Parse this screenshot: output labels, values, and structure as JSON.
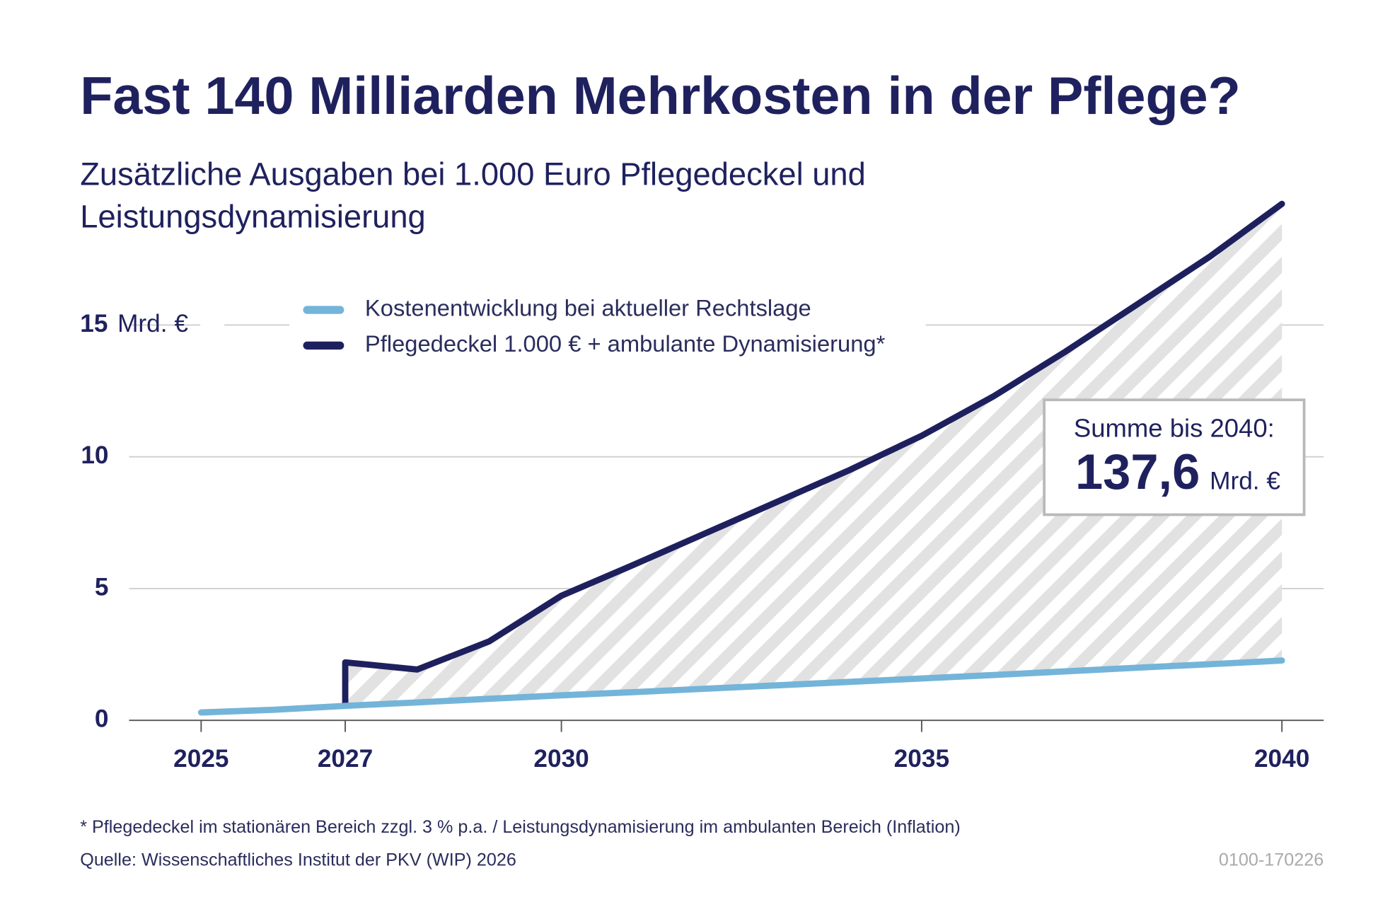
{
  "chart_data": {
    "type": "line",
    "title": "Fast 140 Milliarden Mehrkosten in der Pflege?",
    "subtitle": [
      "Zusätzliche Ausgaben bei 1.000 Euro Pflegedeckel und",
      "Leistungsdynamisierung"
    ],
    "y_unit": "Mrd. €",
    "xlim": [
      2024,
      2040.58
    ],
    "xticks": [
      2025,
      2027,
      2030,
      2035,
      2040
    ],
    "ylim": [
      0,
      20
    ],
    "yticks": [
      0,
      5,
      10,
      15
    ],
    "grid": true,
    "series": [
      {
        "name": "Kostenentwicklung bei aktueller Rechtslage",
        "color": "#74b4d9",
        "x": [
          2025,
          2026,
          2027,
          2028,
          2029,
          2030,
          2031,
          2032,
          2033,
          2034,
          2035,
          2036,
          2037,
          2038,
          2039,
          2040
        ],
        "values": [
          0.3,
          0.4,
          0.55,
          0.68,
          0.82,
          0.95,
          1.07,
          1.2,
          1.33,
          1.46,
          1.59,
          1.72,
          1.86,
          2.0,
          2.13,
          2.27
        ]
      },
      {
        "name": "Pflegedeckel 1.000 € + ambulante Dynamisierung*",
        "color": "#1e205e",
        "x": [
          2027,
          2027,
          2028,
          2029,
          2030,
          2031,
          2032,
          2033,
          2034,
          2035,
          2036,
          2037,
          2038,
          2039,
          2040
        ],
        "values": [
          0.55,
          2.2,
          1.93,
          3.0,
          4.73,
          5.9,
          7.1,
          8.3,
          9.5,
          10.8,
          12.3,
          14.0,
          15.8,
          17.6,
          19.6
        ]
      }
    ],
    "annotation": {
      "label": "Summe bis 2040:",
      "total": {
        "value": 137.6,
        "label": "137,6"
      },
      "unit": "Mrd. €"
    },
    "footnote": "* Pflegedeckel im stationären Bereich zzgl. 3 % p.a. / Leistungsdynamisierung im ambulanten Bereich (Inflation)",
    "source": "Quelle: Wissenschaftliches Institut der PKV (WIP) 2026",
    "code": "0100-170226"
  }
}
